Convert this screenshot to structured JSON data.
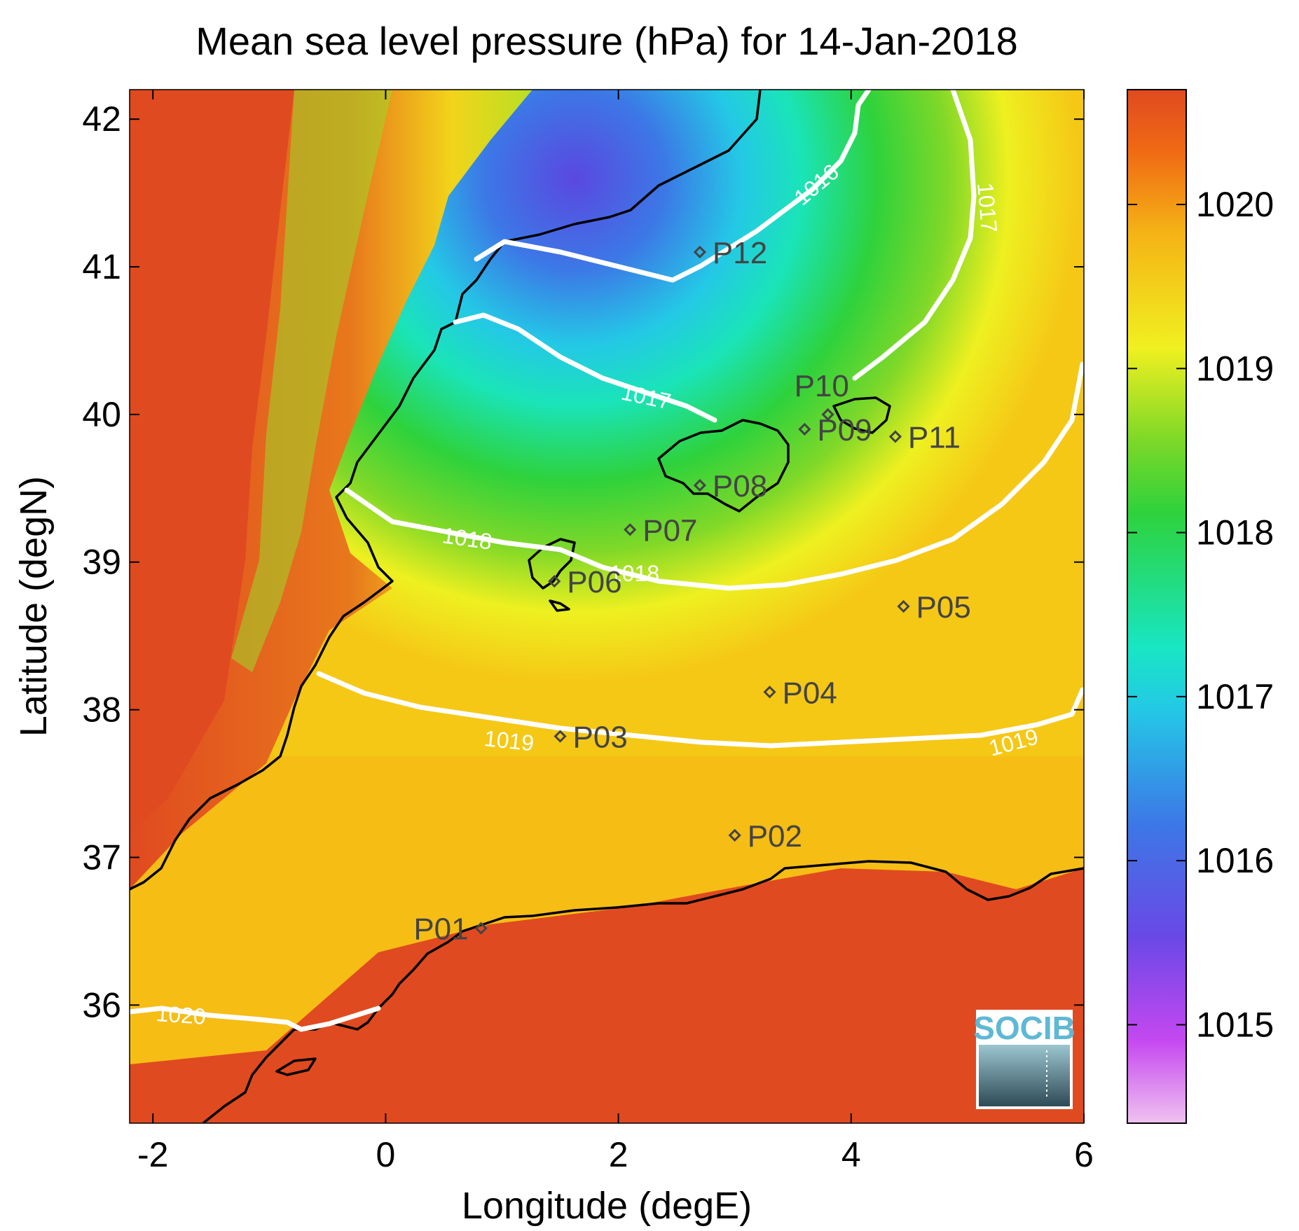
{
  "title": "Mean sea level pressure (hPa) for 14-Jan-2018",
  "map": {
    "xlabel": "Longitude (degE)",
    "ylabel": "Latitude (degN)",
    "xlim": [
      -2.2,
      6.0
    ],
    "ylim": [
      35.2,
      42.2
    ],
    "xticks": [
      "-2",
      "0",
      "2",
      "4",
      "6"
    ],
    "yticks": [
      "36",
      "37",
      "38",
      "39",
      "40",
      "41",
      "42"
    ]
  },
  "colorbar": {
    "range": [
      1014.4,
      1020.7
    ],
    "ticks": [
      "1015",
      "1016",
      "1017",
      "1018",
      "1019",
      "1020"
    ]
  },
  "contour_labels": [
    "1016",
    "1017",
    "1017",
    "1018",
    "1018",
    "1019",
    "1019",
    "1020"
  ],
  "stations": [
    {
      "id": "P01",
      "lon": 0.82,
      "lat": 36.52
    },
    {
      "id": "P02",
      "lon": 3.0,
      "lat": 37.15
    },
    {
      "id": "P03",
      "lon": 1.5,
      "lat": 37.82
    },
    {
      "id": "P04",
      "lon": 3.3,
      "lat": 38.12
    },
    {
      "id": "P05",
      "lon": 4.45,
      "lat": 38.7
    },
    {
      "id": "P06",
      "lon": 1.45,
      "lat": 38.87
    },
    {
      "id": "P07",
      "lon": 2.1,
      "lat": 39.22
    },
    {
      "id": "P08",
      "lon": 2.7,
      "lat": 39.52
    },
    {
      "id": "P09",
      "lon": 3.6,
      "lat": 39.9
    },
    {
      "id": "P10",
      "lon": 3.8,
      "lat": 40.0
    },
    {
      "id": "P11",
      "lon": 4.38,
      "lat": 39.85
    },
    {
      "id": "P12",
      "lon": 2.7,
      "lat": 41.1
    }
  ],
  "logo": {
    "text": "SOCIB"
  }
}
